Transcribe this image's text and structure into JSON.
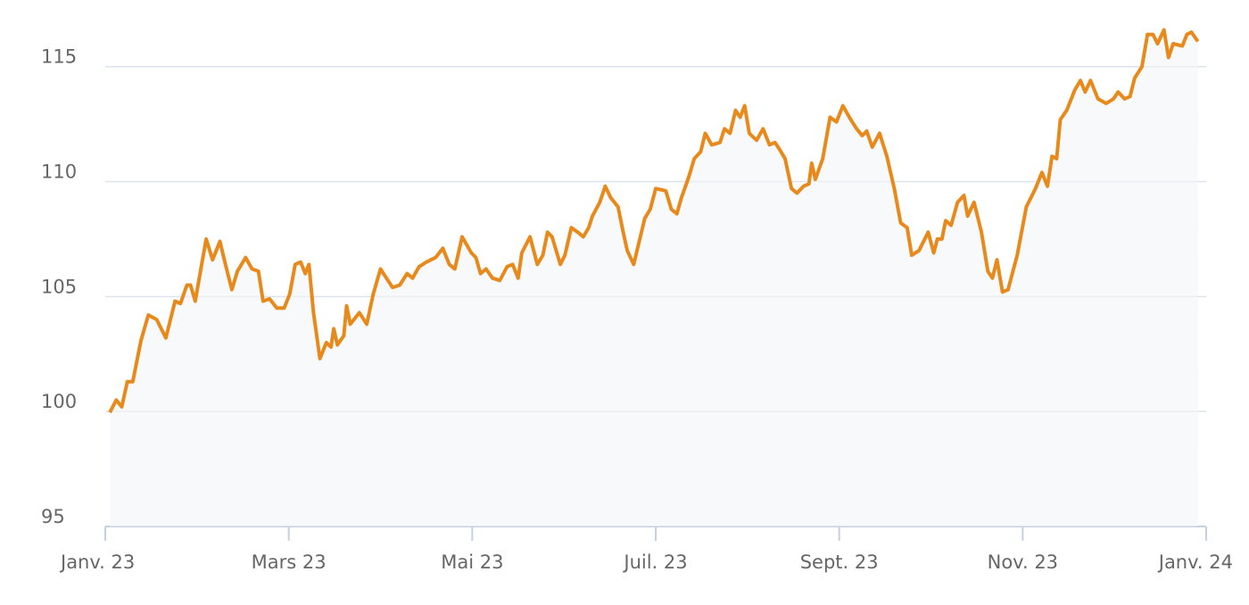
{
  "chart_data": {
    "type": "line",
    "x": [
      0.05,
      0.12,
      0.18,
      0.24,
      0.3,
      0.39,
      0.47,
      0.56,
      0.66,
      0.76,
      0.82,
      0.89,
      0.93,
      0.98,
      1.1,
      1.17,
      1.25,
      1.31,
      1.38,
      1.44,
      1.53,
      1.6,
      1.67,
      1.72,
      1.79,
      1.87,
      1.95,
      2.01,
      2.07,
      2.13,
      2.18,
      2.22,
      2.27,
      2.34,
      2.41,
      2.46,
      2.49,
      2.53,
      2.6,
      2.63,
      2.67,
      2.77,
      2.85,
      2.92,
      3.0,
      3.13,
      3.21,
      3.29,
      3.35,
      3.42,
      3.5,
      3.6,
      3.68,
      3.75,
      3.81,
      3.89,
      3.99,
      4.04,
      4.09,
      4.15,
      4.22,
      4.3,
      4.38,
      4.44,
      4.5,
      4.54,
      4.63,
      4.71,
      4.77,
      4.82,
      4.87,
      4.96,
      5.01,
      5.08,
      5.15,
      5.21,
      5.27,
      5.31,
      5.39,
      5.45,
      5.51,
      5.59,
      5.64,
      5.69,
      5.76,
      5.82,
      5.88,
      5.94,
      6.0,
      6.11,
      6.17,
      6.23,
      6.28,
      6.36,
      6.42,
      6.49,
      6.54,
      6.61,
      6.7,
      6.75,
      6.81,
      6.87,
      6.92,
      6.97,
      7.02,
      7.1,
      7.17,
      7.24,
      7.3,
      7.35,
      7.41,
      7.48,
      7.54,
      7.61,
      7.67,
      7.7,
      7.74,
      7.82,
      7.9,
      7.97,
      8.04,
      8.11,
      8.19,
      8.25,
      8.3,
      8.36,
      8.44,
      8.52,
      8.6,
      8.67,
      8.74,
      8.79,
      8.87,
      8.97,
      9.03,
      9.07,
      9.12,
      9.16,
      9.22,
      9.29,
      9.36,
      9.4,
      9.47,
      9.55,
      9.62,
      9.67,
      9.72,
      9.78,
      9.84,
      9.94,
      10.04,
      10.14,
      10.21,
      10.27,
      10.32,
      10.37,
      10.41,
      10.48,
      10.57,
      10.63,
      10.68,
      10.74,
      10.82,
      10.91,
      10.99,
      11.04,
      11.11,
      11.17,
      11.22,
      11.3,
      11.36,
      11.42,
      11.47,
      11.54,
      11.59,
      11.64,
      11.74,
      11.79,
      11.84,
      11.91
    ],
    "values": [
      99.96,
      100.5,
      100.2,
      101.3,
      101.3,
      103.1,
      104.2,
      104.0,
      103.2,
      104.8,
      104.7,
      105.5,
      105.5,
      104.8,
      107.5,
      106.6,
      107.4,
      106.4,
      105.3,
      106.1,
      106.7,
      106.2,
      106.1,
      104.8,
      104.9,
      104.5,
      104.5,
      105.1,
      106.4,
      106.5,
      106.0,
      106.4,
      104.3,
      102.3,
      103.0,
      102.8,
      103.6,
      102.9,
      103.3,
      104.6,
      103.8,
      104.3,
      103.8,
      105.1,
      106.2,
      105.4,
      105.5,
      106.0,
      105.8,
      106.3,
      106.5,
      106.7,
      107.1,
      106.4,
      106.2,
      107.6,
      106.9,
      106.7,
      106.0,
      106.2,
      105.8,
      105.7,
      106.3,
      106.4,
      105.8,
      106.9,
      107.6,
      106.4,
      106.8,
      107.8,
      107.6,
      106.4,
      106.8,
      108.0,
      107.8,
      107.6,
      108.0,
      108.5,
      109.1,
      109.8,
      109.3,
      108.9,
      107.9,
      107.0,
      106.4,
      107.4,
      108.4,
      108.8,
      109.7,
      109.6,
      108.8,
      108.6,
      109.3,
      110.2,
      111.0,
      111.3,
      112.1,
      111.6,
      111.7,
      112.3,
      112.1,
      113.1,
      112.8,
      113.3,
      112.1,
      111.8,
      112.3,
      111.6,
      111.7,
      111.4,
      111.0,
      109.7,
      109.5,
      109.8,
      109.9,
      110.8,
      110.1,
      111.0,
      112.8,
      112.6,
      113.3,
      112.8,
      112.3,
      112.0,
      112.2,
      111.5,
      112.1,
      111.1,
      109.7,
      108.2,
      108.0,
      106.8,
      107.0,
      107.8,
      106.9,
      107.5,
      107.5,
      108.3,
      108.1,
      109.1,
      109.4,
      108.5,
      109.1,
      107.8,
      106.1,
      105.8,
      106.6,
      105.2,
      105.3,
      106.8,
      108.9,
      109.7,
      110.4,
      109.8,
      111.1,
      111.0,
      112.7,
      113.1,
      114.0,
      114.4,
      113.9,
      114.4,
      113.6,
      113.4,
      113.6,
      113.9,
      113.6,
      113.7,
      114.5,
      115.0,
      116.4,
      116.4,
      116.0,
      116.6,
      115.4,
      116.0,
      115.9,
      116.4,
      116.5,
      116.1
    ],
    "color": "#e8891c",
    "xlim": [
      0,
      12
    ],
    "xticks": [
      {
        "value": 0,
        "label": "Janv. 23"
      },
      {
        "value": 2,
        "label": "Mars 23"
      },
      {
        "value": 4,
        "label": "Mai 23"
      },
      {
        "value": 6,
        "label": "Juil. 23"
      },
      {
        "value": 8,
        "label": "Sept. 23"
      },
      {
        "value": 10,
        "label": "Nov. 23"
      },
      {
        "value": 12,
        "label": "Janv. 24"
      }
    ],
    "ylim": [
      95,
      117.9
    ],
    "yticks": [
      95,
      100,
      105,
      110,
      115
    ],
    "grid": true
  }
}
